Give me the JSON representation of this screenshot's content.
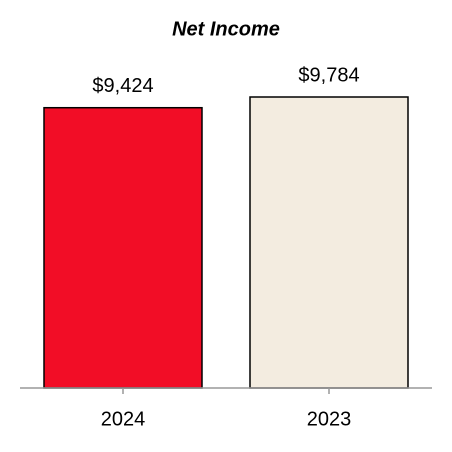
{
  "chart_data": {
    "type": "bar",
    "title": "Net Income",
    "categories": [
      "2024",
      "2023"
    ],
    "values": [
      9424,
      9784
    ],
    "value_labels": [
      "$9,424",
      "$9,784"
    ],
    "colors": [
      "#f20d26",
      "#f3ece0"
    ]
  }
}
